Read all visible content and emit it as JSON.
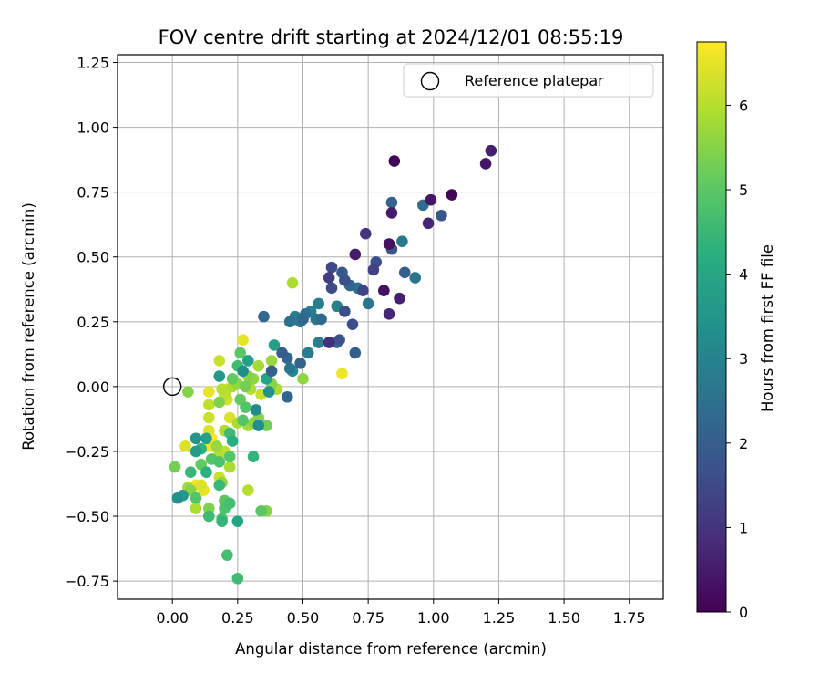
{
  "chart_data": {
    "type": "scatter",
    "title": "FOV centre drift starting at 2024/12/01 08:55:19",
    "xlabel": "Angular distance from reference (arcmin)",
    "ylabel": "Rotation from reference (arcmin)",
    "xlim": [
      -0.21,
      1.88
    ],
    "ylim": [
      -0.82,
      1.28
    ],
    "x_ticks": [
      0.0,
      0.25,
      0.5,
      0.75,
      1.0,
      1.25,
      1.5,
      1.75
    ],
    "x_tick_labels": [
      "0.00",
      "0.25",
      "0.50",
      "0.75",
      "1.00",
      "1.25",
      "1.50",
      "1.75"
    ],
    "y_ticks": [
      -0.75,
      -0.5,
      -0.25,
      0.0,
      0.25,
      0.5,
      0.75,
      1.0,
      1.25
    ],
    "y_tick_labels": [
      "−0.75",
      "−0.50",
      "−0.25",
      "0.00",
      "0.25",
      "0.50",
      "0.75",
      "1.00",
      "1.25"
    ],
    "grid": true,
    "legend": {
      "placement": "top-right",
      "entries": [
        {
          "label": "Reference platepar",
          "marker": "open-circle"
        }
      ]
    },
    "reference_point": {
      "x": 0.0,
      "y": 0.0
    },
    "colorbar": {
      "label": "Hours from first FF file",
      "colormap": "viridis",
      "range": [
        0,
        6.75
      ],
      "ticks": [
        0,
        1,
        2,
        3,
        4,
        5,
        6
      ],
      "tick_labels": [
        "0",
        "1",
        "2",
        "3",
        "4",
        "5",
        "6"
      ]
    },
    "points": [
      [
        0.85,
        0.87,
        0.05
      ],
      [
        1.22,
        0.91,
        0.6
      ],
      [
        1.2,
        0.86,
        0.4
      ],
      [
        1.07,
        0.74,
        0.1
      ],
      [
        0.99,
        0.72,
        0.4
      ],
      [
        0.96,
        0.7,
        2.4
      ],
      [
        1.03,
        0.66,
        1.8
      ],
      [
        0.98,
        0.63,
        0.7
      ],
      [
        0.84,
        0.71,
        2.1
      ],
      [
        0.84,
        0.67,
        0.5
      ],
      [
        0.74,
        0.59,
        1.0
      ],
      [
        0.83,
        0.55,
        0.3
      ],
      [
        0.84,
        0.53,
        1.8
      ],
      [
        0.88,
        0.56,
        2.7
      ],
      [
        0.7,
        0.51,
        0.5
      ],
      [
        0.78,
        0.48,
        1.6
      ],
      [
        0.77,
        0.45,
        1.3
      ],
      [
        0.89,
        0.44,
        2.0
      ],
      [
        0.93,
        0.42,
        2.6
      ],
      [
        0.61,
        0.46,
        1.5
      ],
      [
        0.65,
        0.44,
        1.9
      ],
      [
        0.6,
        0.42,
        1.2
      ],
      [
        0.66,
        0.41,
        1.7
      ],
      [
        0.68,
        0.39,
        2.2
      ],
      [
        0.71,
        0.38,
        2.5
      ],
      [
        0.73,
        0.37,
        1.4
      ],
      [
        0.81,
        0.37,
        0.3
      ],
      [
        0.75,
        0.32,
        2.6
      ],
      [
        0.87,
        0.34,
        0.6
      ],
      [
        0.83,
        0.28,
        0.7
      ],
      [
        0.61,
        0.38,
        1.6
      ],
      [
        0.56,
        0.32,
        2.9
      ],
      [
        0.63,
        0.31,
        2.9
      ],
      [
        0.66,
        0.29,
        1.6
      ],
      [
        0.51,
        0.28,
        2.4
      ],
      [
        0.47,
        0.27,
        2.8
      ],
      [
        0.53,
        0.29,
        2.9
      ],
      [
        0.55,
        0.26,
        2.6
      ],
      [
        0.57,
        0.26,
        2.3
      ],
      [
        0.35,
        0.27,
        2.3
      ],
      [
        0.5,
        0.26,
        2.3
      ],
      [
        0.49,
        0.25,
        2.7
      ],
      [
        0.45,
        0.25,
        2.5
      ],
      [
        0.69,
        0.24,
        1.6
      ],
      [
        0.46,
        0.4,
        5.9
      ],
      [
        0.64,
        0.18,
        1.7
      ],
      [
        0.63,
        0.17,
        2.4
      ],
      [
        0.6,
        0.17,
        0.9
      ],
      [
        0.56,
        0.17,
        2.9
      ],
      [
        0.52,
        0.13,
        2.8
      ],
      [
        0.7,
        0.13,
        2.0
      ],
      [
        0.42,
        0.13,
        2.0
      ],
      [
        0.39,
        0.16,
        3.8
      ],
      [
        0.44,
        0.11,
        2.2
      ],
      [
        0.49,
        0.09,
        2.1
      ],
      [
        0.45,
        0.07,
        2.6
      ],
      [
        0.46,
        0.06,
        3.3
      ],
      [
        0.38,
        0.1,
        5.7
      ],
      [
        0.38,
        0.06,
        2.1
      ],
      [
        0.36,
        0.03,
        3.9
      ],
      [
        0.33,
        0.08,
        5.8
      ],
      [
        0.29,
        0.1,
        3.8
      ],
      [
        0.26,
        0.13,
        5.0
      ],
      [
        0.27,
        0.18,
        6.5
      ],
      [
        0.18,
        0.1,
        6.2
      ],
      [
        0.25,
        0.08,
        4.6
      ],
      [
        0.23,
        0.03,
        5.1
      ],
      [
        0.27,
        0.06,
        3.3
      ],
      [
        0.29,
        0.04,
        5.5
      ],
      [
        0.31,
        0.03,
        5.6
      ],
      [
        0.18,
        0.04,
        3.6
      ],
      [
        0.5,
        0.03,
        5.6
      ],
      [
        0.38,
        0.01,
        5.5
      ],
      [
        0.4,
        -0.01,
        5.9
      ],
      [
        0.44,
        -0.04,
        2.2
      ],
      [
        0.37,
        -0.02,
        3.4
      ],
      [
        0.34,
        -0.03,
        6.2
      ],
      [
        0.3,
        -0.01,
        6.0
      ],
      [
        0.28,
        0.0,
        5.3
      ],
      [
        0.25,
        0.01,
        5.6
      ],
      [
        0.23,
        0.0,
        5.9
      ],
      [
        0.21,
        -0.01,
        6.4
      ],
      [
        0.2,
        -0.03,
        6.1
      ],
      [
        0.19,
        -0.01,
        6.0
      ],
      [
        0.21,
        -0.05,
        6.3
      ],
      [
        0.14,
        -0.02,
        6.5
      ],
      [
        0.06,
        -0.02,
        5.5
      ],
      [
        0.14,
        -0.07,
        6.1
      ],
      [
        0.18,
        -0.06,
        5.4
      ],
      [
        0.26,
        -0.05,
        5.1
      ],
      [
        0.28,
        -0.08,
        4.9
      ],
      [
        0.32,
        -0.09,
        3.2
      ],
      [
        0.14,
        -0.12,
        6.2
      ],
      [
        0.22,
        -0.12,
        6.4
      ],
      [
        0.27,
        -0.13,
        4.9
      ],
      [
        0.25,
        -0.14,
        5.9
      ],
      [
        0.29,
        -0.15,
        5.8
      ],
      [
        0.31,
        -0.14,
        5.6
      ],
      [
        0.33,
        -0.12,
        5.5
      ],
      [
        0.36,
        -0.15,
        5.3
      ],
      [
        0.33,
        -0.15,
        3.3
      ],
      [
        0.14,
        -0.17,
        6.4
      ],
      [
        0.15,
        -0.2,
        6.7
      ],
      [
        0.09,
        -0.2,
        3.5
      ],
      [
        0.13,
        -0.2,
        3.8
      ],
      [
        0.2,
        -0.17,
        5.9
      ],
      [
        0.22,
        -0.18,
        4.6
      ],
      [
        0.23,
        -0.21,
        4.2
      ],
      [
        0.17,
        -0.23,
        5.7
      ],
      [
        0.14,
        -0.23,
        6.6
      ],
      [
        0.11,
        -0.24,
        4.3
      ],
      [
        0.05,
        -0.23,
        6.4
      ],
      [
        0.09,
        -0.25,
        3.7
      ],
      [
        0.18,
        -0.26,
        6.0
      ],
      [
        0.2,
        -0.25,
        6.1
      ],
      [
        0.22,
        -0.27,
        4.9
      ],
      [
        0.31,
        -0.27,
        4.4
      ],
      [
        0.15,
        -0.28,
        4.9
      ],
      [
        0.11,
        -0.3,
        5.1
      ],
      [
        0.18,
        -0.29,
        4.8
      ],
      [
        0.22,
        -0.31,
        5.9
      ],
      [
        0.01,
        -0.31,
        5.3
      ],
      [
        0.07,
        -0.33,
        4.5
      ],
      [
        0.13,
        -0.33,
        4.3
      ],
      [
        0.18,
        -0.35,
        6.2
      ],
      [
        0.19,
        -0.37,
        5.6
      ],
      [
        0.18,
        -0.38,
        4.5
      ],
      [
        0.09,
        -0.38,
        6.6
      ],
      [
        0.11,
        -0.38,
        6.4
      ],
      [
        0.06,
        -0.39,
        5.8
      ],
      [
        0.07,
        -0.4,
        5.5
      ],
      [
        0.12,
        -0.4,
        6.5
      ],
      [
        0.04,
        -0.42,
        3.6
      ],
      [
        0.02,
        -0.43,
        3.4
      ],
      [
        0.09,
        -0.43,
        4.9
      ],
      [
        0.2,
        -0.44,
        5.0
      ],
      [
        0.22,
        -0.45,
        4.7
      ],
      [
        0.09,
        -0.47,
        5.9
      ],
      [
        0.14,
        -0.47,
        5.4
      ],
      [
        0.2,
        -0.47,
        4.8
      ],
      [
        0.29,
        -0.4,
        6.0
      ],
      [
        0.34,
        -0.48,
        5.0
      ],
      [
        0.36,
        -0.48,
        5.5
      ],
      [
        0.14,
        -0.5,
        4.6
      ],
      [
        0.19,
        -0.52,
        4.4
      ],
      [
        0.25,
        -0.52,
        3.9
      ],
      [
        0.19,
        -0.51,
        4.8
      ],
      [
        0.21,
        -0.65,
        4.7
      ],
      [
        0.25,
        -0.74,
        4.6
      ],
      [
        0.65,
        0.05,
        6.6
      ]
    ]
  }
}
